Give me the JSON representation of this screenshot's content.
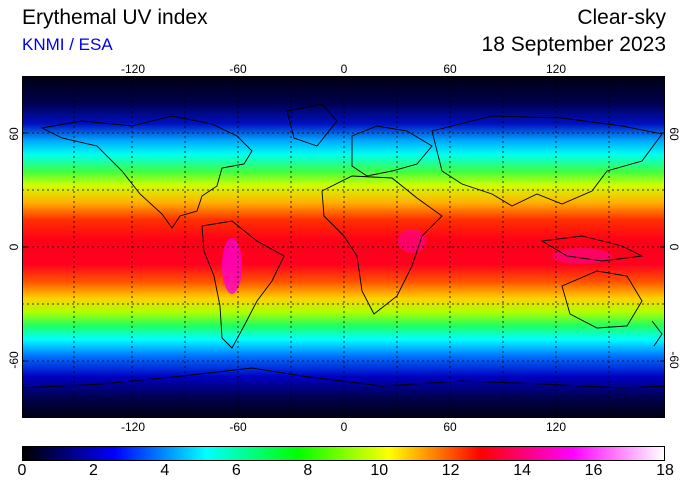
{
  "header": {
    "title": "Erythemal UV index",
    "source": "KNMI / ESA",
    "condition": "Clear-sky",
    "date": "18 September 2023"
  },
  "map": {
    "lon_ticks": [
      "-120",
      "-60",
      "0",
      "60",
      "120"
    ],
    "lat_ticks": [
      "60",
      "0",
      "-60"
    ],
    "grid": true
  },
  "colorbar": {
    "min": 0,
    "max": 18,
    "labels": [
      "0",
      "2",
      "4",
      "6",
      "8",
      "10",
      "12",
      "14",
      "16",
      "18"
    ],
    "colors": [
      "#000000",
      "#0000ff",
      "#00ffff",
      "#00ff00",
      "#ffff00",
      "#ff0000",
      "#ff00ff",
      "#ffffff"
    ]
  }
}
